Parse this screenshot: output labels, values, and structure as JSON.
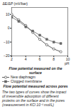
{
  "chart_data": {
    "type": "line",
    "x_label": "pH",
    "y_label": "ΔE/ΔP (mV/bar)",
    "xlim": [
      2,
      10
    ],
    "xticks": [
      2,
      4,
      6,
      8,
      10
    ],
    "ylim": [
      -20,
      15
    ],
    "yticks": [
      -20,
      -10,
      0,
      10
    ],
    "x": [
      2,
      3,
      4,
      5,
      6,
      7,
      8,
      9
    ],
    "series": [
      {
        "name": "New diaphragm",
        "color": "#333333",
        "marker": "circle-open",
        "values": [
          10,
          6,
          2,
          -3,
          -8,
          -12,
          -15,
          -17
        ]
      },
      {
        "name": "Clogged membrane",
        "color": "#666666",
        "marker": "square",
        "values": [
          8,
          5,
          1,
          -2,
          -5,
          -8,
          -10,
          -11
        ]
      }
    ],
    "annotations": [
      "Flow potential measured on the surface",
      "Flow potential measured across pores"
    ],
    "note": "The two types of curves show the impact of irreversible adsorption of different proteins on the surface and in the pores (measurement in KCl 10⁻³ mol/L)"
  }
}
